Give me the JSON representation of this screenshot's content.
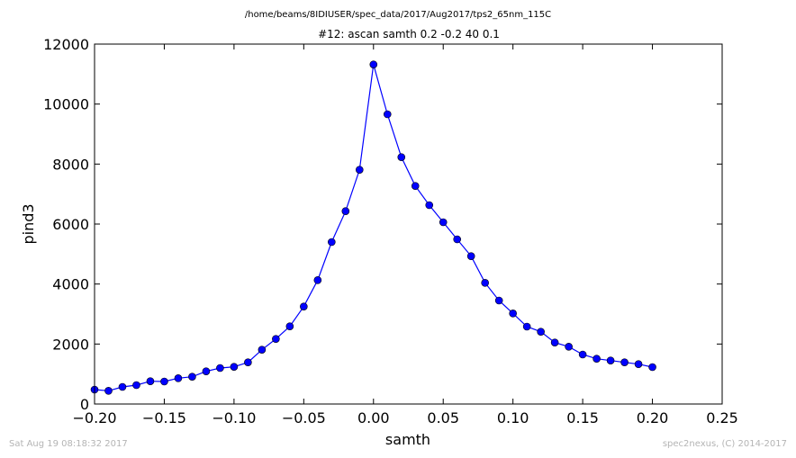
{
  "page": {
    "file_path": "/home/beams/8IDIUSER/spec_data/2017/Aug2017/tps2_65nm_115C",
    "timestamp": "Sat Aug 19 08:18:32 2017",
    "credit": "spec2nexus, (C) 2014-2017"
  },
  "chart_data": {
    "type": "line",
    "title": "#12: ascan  samth 0.2 -0.2  40 0.1",
    "xlabel": "samth",
    "ylabel": "pind3",
    "xlim": [
      -0.2,
      0.25
    ],
    "ylim": [
      0,
      12000
    ],
    "xticks": [
      -0.2,
      -0.15,
      -0.1,
      -0.05,
      0.0,
      0.05,
      0.1,
      0.15,
      0.2,
      0.25
    ],
    "xtick_labels": [
      "−0.20",
      "−0.15",
      "−0.10",
      "−0.05",
      "0.00",
      "0.05",
      "0.10",
      "0.15",
      "0.20",
      "0.25"
    ],
    "yticks": [
      0,
      2000,
      4000,
      6000,
      8000,
      10000,
      12000
    ],
    "ytick_labels": [
      "0",
      "2000",
      "4000",
      "6000",
      "8000",
      "10000",
      "12000"
    ],
    "grid": false,
    "series": [
      {
        "color": "#0000ff",
        "marker": "circle",
        "x": [
          -0.2,
          -0.19,
          -0.18,
          -0.17,
          -0.16,
          -0.15,
          -0.14,
          -0.13,
          -0.12,
          -0.11,
          -0.1,
          -0.09,
          -0.08,
          -0.07,
          -0.06,
          -0.05,
          -0.04,
          -0.03,
          -0.02,
          -0.01,
          0.0,
          0.01,
          0.02,
          0.03,
          0.04,
          0.05,
          0.06,
          0.07,
          0.08,
          0.09,
          0.1,
          0.11,
          0.12,
          0.13,
          0.14,
          0.15,
          0.16,
          0.17,
          0.18,
          0.19,
          0.2
        ],
        "y": [
          480,
          440,
          570,
          630,
          760,
          750,
          860,
          910,
          1090,
          1200,
          1240,
          1390,
          1810,
          2170,
          2590,
          3250,
          4130,
          5400,
          6430,
          7810,
          11320,
          9660,
          8230,
          7270,
          6630,
          6060,
          5490,
          4930,
          4040,
          3450,
          3020,
          2580,
          2410,
          2050,
          1910,
          1650,
          1510,
          1450,
          1390,
          1330,
          1230
        ]
      }
    ]
  }
}
